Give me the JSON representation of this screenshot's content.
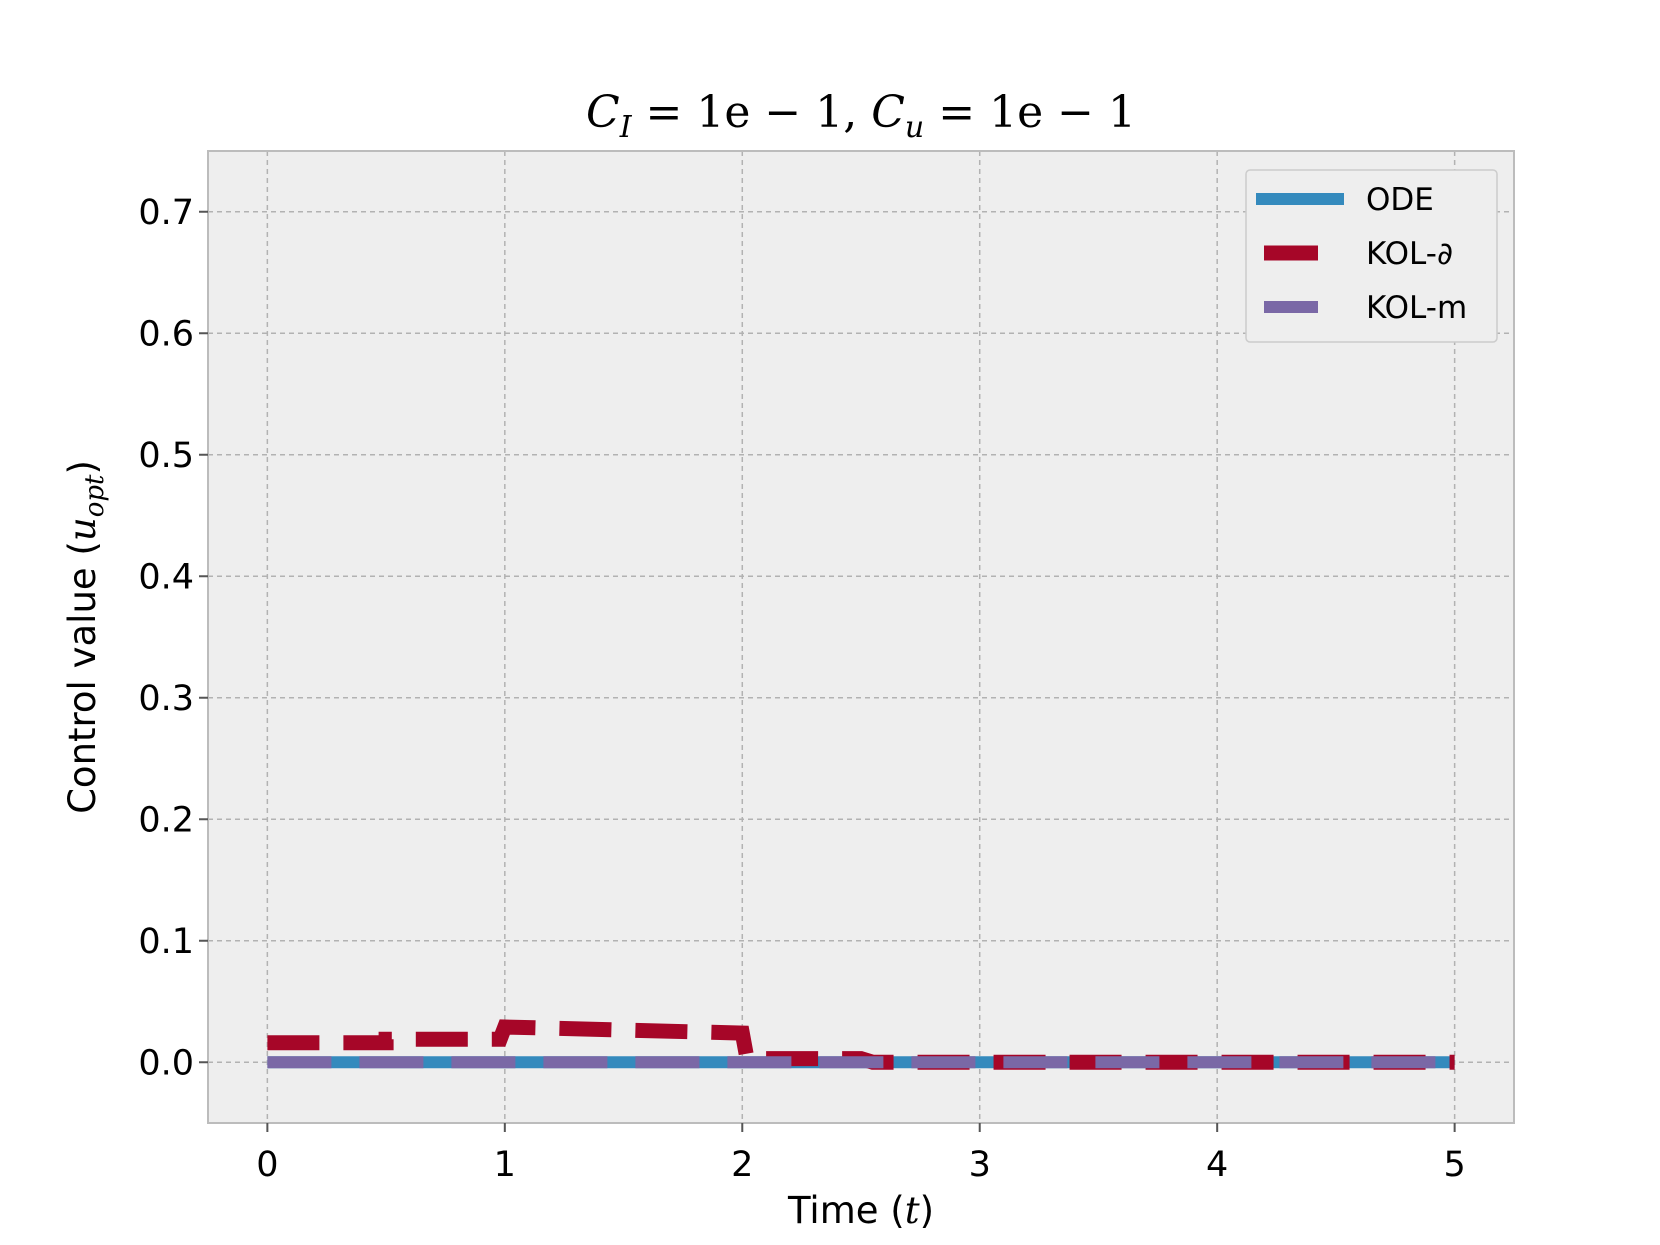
{
  "chart_data": {
    "type": "line",
    "title": "C_I = 1e−1,  C_u = 1e−1",
    "title_parts": {
      "c1": "C",
      "s1": "I",
      "eq1": " = 1e − 1,  ",
      "c2": "C",
      "s2": "u",
      "eq2": " = 1e − 1"
    },
    "xlabel": "Time (t)",
    "xlabel_parts": {
      "text": "Time (",
      "var": "t",
      "close": ")"
    },
    "ylabel": "Control value (u_opt)",
    "ylabel_parts": {
      "text": "Control value (",
      "var": "u",
      "sub": "opt",
      "close": ")"
    },
    "xlim": [
      -0.25,
      5.25
    ],
    "ylim": [
      -0.05,
      0.75
    ],
    "xticks": [
      0,
      1,
      2,
      3,
      4,
      5
    ],
    "xtick_labels": [
      "0",
      "1",
      "2",
      "3",
      "4",
      "5"
    ],
    "yticks": [
      0.0,
      0.1,
      0.2,
      0.3,
      0.4,
      0.5,
      0.6,
      0.7
    ],
    "ytick_labels": [
      "0.0",
      "0.1",
      "0.2",
      "0.3",
      "0.4",
      "0.5",
      "0.6",
      "0.7"
    ],
    "grid": true,
    "legend_position": "top-right",
    "series": [
      {
        "name": "ODE",
        "color": "#348ABD",
        "style": "solid",
        "x": [
          0,
          1,
          2,
          3,
          4,
          5
        ],
        "y": [
          0,
          0,
          0,
          0,
          0,
          0
        ]
      },
      {
        "name": "KOL-∂",
        "color": "#A60628",
        "style": "dashed",
        "x": [
          0,
          0.5,
          0.5,
          0.98,
          1.0,
          2.0,
          2.02,
          2.5,
          2.55,
          5.0
        ],
        "y": [
          0.016,
          0.016,
          0.019,
          0.019,
          0.029,
          0.024,
          0.003,
          0.003,
          0.0,
          0.0
        ]
      },
      {
        "name": "KOL-m",
        "color": "#7A68A6",
        "style": "dashed",
        "x": [
          0,
          1,
          2,
          3,
          4,
          5
        ],
        "y": [
          0,
          0,
          0,
          0,
          0,
          0
        ]
      }
    ]
  }
}
